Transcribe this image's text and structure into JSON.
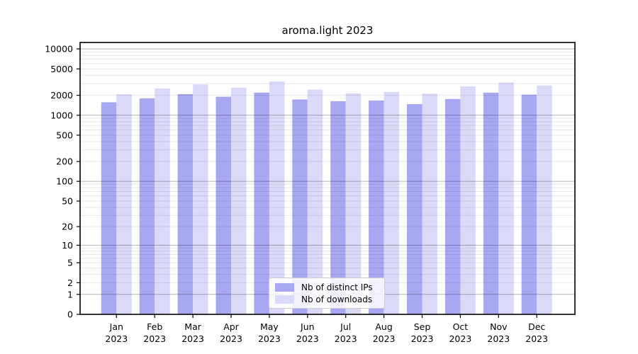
{
  "page": {
    "title": "aroma.light 2023"
  },
  "chart_data": {
    "type": "bar",
    "title": "aroma.light 2023",
    "categories": [
      "Jan",
      "Feb",
      "Mar",
      "Apr",
      "May",
      "Jun",
      "Jul",
      "Aug",
      "Sep",
      "Oct",
      "Nov",
      "Dec"
    ],
    "category_year": "2023",
    "series": [
      {
        "name": "Nb of distinct IPs",
        "color": "#a8a8f2",
        "values": [
          1570,
          1800,
          2080,
          1900,
          2200,
          1730,
          1630,
          1670,
          1470,
          1760,
          2190,
          2050
        ]
      },
      {
        "name": "Nb of downloads",
        "color": "#dadaf8",
        "values": [
          2080,
          2530,
          2920,
          2610,
          3230,
          2440,
          2140,
          2250,
          2120,
          2720,
          3120,
          2810
        ]
      }
    ],
    "xlabel": "",
    "ylabel": "",
    "y_scale": "log10(1+x)",
    "y_tick_values": [
      10000,
      5000,
      2000,
      1000,
      500,
      200,
      100,
      50,
      20,
      10,
      5,
      2,
      1,
      0
    ],
    "ylim": [
      0,
      12500
    ],
    "grid": "horizontal",
    "grid_major_at": [
      1,
      10,
      100,
      1000,
      10000
    ],
    "legend_position": "lower center"
  }
}
